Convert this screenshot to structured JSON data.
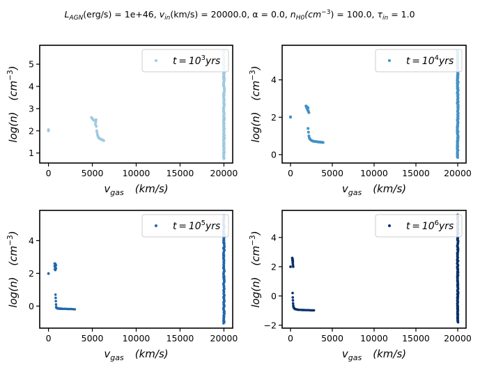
{
  "figure": {
    "suptitle_parts": [
      {
        "t": "L",
        "style": "italic"
      },
      {
        "t": "AGN",
        "style": "italic",
        "sub": true
      },
      {
        "t": "(erg/s) = 1e+46, ",
        "style": "italic-mixed"
      },
      {
        "t": "v",
        "style": "italic"
      },
      {
        "t": "in",
        "style": "italic",
        "sub": true
      },
      {
        "t": "(km/s) = 20000.0, α = 0.0, ",
        "style": "italic-mixed"
      },
      {
        "t": "n",
        "style": "italic"
      },
      {
        "t": "H0",
        "style": "italic",
        "sub": true
      },
      {
        "t": "(cm",
        "style": "italic"
      },
      {
        "t": "−3",
        "style": "normal",
        "sup": true
      },
      {
        "t": ") = 100.0, ",
        "style": "italic-mixed"
      },
      {
        "t": "τ",
        "style": "italic"
      },
      {
        "t": "in",
        "style": "italic",
        "sub": true
      },
      {
        "t": " = 1.0",
        "style": "normal"
      }
    ]
  },
  "chart_data": [
    {
      "type": "scatter",
      "xlabel": "v_gas (km/s)",
      "ylabel": "log(n) (cm^-3)",
      "xlim": [
        -1000,
        21000
      ],
      "ylim": [
        0.55,
        5.85
      ],
      "xticks": [
        0,
        5000,
        10000,
        15000,
        20000
      ],
      "yticks": [
        1,
        2,
        3,
        4,
        5
      ],
      "legend": {
        "label_prefix": "t = 10",
        "exponent": "3",
        "label_suffix": "yrs",
        "position": "top-right"
      },
      "color": "#9ecae1",
      "marker_r": 2.0,
      "clusters": [
        {
          "x": [
            0,
            0
          ],
          "y": [
            2.0,
            2.05
          ]
        },
        {
          "x": [
            4900,
            5000,
            5100,
            5250,
            5400,
            5450,
            5500,
            5550,
            5600,
            5650,
            5700,
            5750,
            5800,
            5900,
            6000,
            6100,
            6200,
            6300,
            5350,
            5420
          ],
          "y": [
            2.6,
            2.55,
            2.5,
            2.45,
            2.4,
            2.2,
            2.0,
            1.9,
            1.8,
            1.75,
            1.7,
            1.68,
            1.66,
            1.64,
            1.62,
            1.6,
            1.58,
            1.56,
            2.3,
            2.5
          ]
        },
        {
          "x_const": 20000,
          "y_range": [
            0.75,
            5.6
          ],
          "n": 120,
          "x_jitter": 120
        }
      ]
    },
    {
      "type": "scatter",
      "xlabel": "v_gas (km/s)",
      "ylabel": "log(n) (cm^-3)",
      "xlim": [
        -1000,
        21000
      ],
      "ylim": [
        -0.45,
        5.85
      ],
      "xticks": [
        0,
        5000,
        10000,
        15000,
        20000
      ],
      "yticks": [
        0,
        2,
        4
      ],
      "legend": {
        "label_prefix": "t = 10",
        "exponent": "4",
        "label_suffix": "yrs",
        "position": "top-right"
      },
      "color": "#4292c6",
      "marker_r": 2.0,
      "clusters": [
        {
          "x": [
            0,
            0
          ],
          "y": [
            2.0,
            2.02
          ]
        },
        {
          "x": [
            1850,
            1900,
            1950,
            2000,
            2050,
            2100,
            2150,
            2200,
            2000,
            2100
          ],
          "y": [
            2.6,
            2.55,
            2.5,
            2.45,
            2.4,
            2.35,
            2.3,
            2.25,
            2.55,
            2.5
          ]
        },
        {
          "x": [
            2100,
            2150,
            2200,
            2250,
            2300,
            2400,
            2500,
            2600,
            2700,
            2800,
            2900,
            3000,
            3100,
            3200,
            3300,
            3400,
            3500,
            3600,
            3700,
            3800,
            3900
          ],
          "y": [
            1.4,
            1.2,
            1.0,
            0.9,
            0.85,
            0.8,
            0.76,
            0.74,
            0.72,
            0.71,
            0.7,
            0.7,
            0.69,
            0.69,
            0.68,
            0.68,
            0.67,
            0.67,
            0.66,
            0.66,
            0.65
          ]
        },
        {
          "x_const": 20000,
          "y_range": [
            -0.15,
            5.55
          ],
          "n": 120,
          "x_jitter": 120
        }
      ]
    },
    {
      "type": "scatter",
      "xlabel": "v_gas (km/s)",
      "ylabel": "log(n) (cm^-3)",
      "xlim": [
        -1000,
        21000
      ],
      "ylim": [
        -1.35,
        5.85
      ],
      "xticks": [
        0,
        5000,
        10000,
        15000,
        20000
      ],
      "yticks": [
        0,
        2,
        4
      ],
      "legend": {
        "label_prefix": "t = 10",
        "exponent": "5",
        "label_suffix": "yrs",
        "position": "top-right"
      },
      "color": "#2166ac",
      "marker_r": 1.8,
      "clusters": [
        {
          "x": [
            0,
            0
          ],
          "y": [
            2.0,
            1.98
          ]
        },
        {
          "x": [
            700,
            750,
            800,
            850,
            700,
            750,
            800,
            850,
            720,
            780,
            830
          ],
          "y": [
            2.6,
            2.6,
            2.55,
            2.5,
            2.45,
            2.4,
            2.35,
            2.3,
            2.25,
            2.2,
            2.5
          ]
        },
        {
          "x": [
            800,
            820,
            840,
            860,
            880,
            900,
            950,
            1000,
            1100,
            1200,
            1300,
            1400,
            1500,
            1600,
            1800,
            2000,
            2200,
            2400,
            2600,
            2800,
            3000
          ],
          "y": [
            0.7,
            0.5,
            0.3,
            0.1,
            -0.05,
            -0.1,
            -0.12,
            -0.14,
            -0.15,
            -0.15,
            -0.16,
            -0.16,
            -0.16,
            -0.17,
            -0.17,
            -0.17,
            -0.18,
            -0.18,
            -0.18,
            -0.19,
            -0.2
          ]
        },
        {
          "x_const": 20000,
          "y_range": [
            -1.05,
            5.55
          ],
          "n": 140,
          "x_jitter": 120
        }
      ]
    },
    {
      "type": "scatter",
      "xlabel": "v_gas (km/s)",
      "ylabel": "log(n) (cm^-3)",
      "xlim": [
        -1000,
        21000
      ],
      "ylim": [
        -2.2,
        5.85
      ],
      "xticks": [
        0,
        5000,
        10000,
        15000,
        20000
      ],
      "yticks": [
        -2,
        0,
        2,
        4
      ],
      "legend": {
        "label_prefix": "t = 10",
        "exponent": "6",
        "label_suffix": "yrs",
        "position": "top-right"
      },
      "color": "#08306b",
      "marker_r": 1.8,
      "clusters": [
        {
          "x": [
            0,
            0
          ],
          "y": [
            2.0,
            2.0
          ]
        },
        {
          "x": [
            200,
            220,
            240,
            260,
            280,
            300,
            320,
            250,
            270,
            290
          ],
          "y": [
            2.6,
            2.5,
            2.4,
            2.3,
            2.2,
            2.1,
            2.0,
            2.55,
            2.45,
            2.35
          ]
        },
        {
          "x": [
            250,
            270,
            290,
            310,
            330,
            350,
            400,
            450,
            500,
            600,
            700,
            800,
            900,
            1000,
            1200,
            1400,
            1600,
            1800,
            2000,
            2200,
            2400,
            2600,
            2800
          ],
          "y": [
            0.2,
            -0.1,
            -0.3,
            -0.5,
            -0.65,
            -0.75,
            -0.8,
            -0.85,
            -0.88,
            -0.9,
            -0.92,
            -0.93,
            -0.94,
            -0.95,
            -0.95,
            -0.96,
            -0.96,
            -0.97,
            -0.97,
            -0.97,
            -0.98,
            -0.98,
            -0.98
          ]
        },
        {
          "x_const": 20000,
          "y_range": [
            -1.8,
            5.55
          ],
          "n": 150,
          "x_jitter": 110
        },
        {
          "x": [
            20000,
            20000,
            20000
          ],
          "y": [
            4.6,
            4.9,
            5.2
          ]
        }
      ]
    }
  ]
}
